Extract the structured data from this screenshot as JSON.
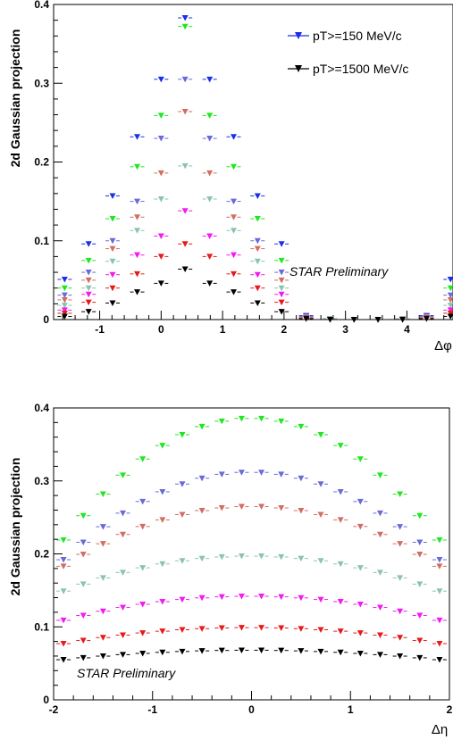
{
  "chart_data": [
    {
      "type": "scatter",
      "panel": "top",
      "xlabel": "Δφ",
      "ylabel": "2d Gaussian projection",
      "annotation": "STAR Preliminary",
      "xlim": [
        -1.75,
        4.75
      ],
      "ylim": [
        0,
        0.4
      ],
      "xticks": [
        "-1",
        "0",
        "1",
        "2",
        "3",
        "4"
      ],
      "yticks": [
        "0",
        "0.1",
        "0.2",
        "0.3",
        "0.4"
      ],
      "legend": [
        {
          "label": "pT>=150 MeV/c",
          "color": "#1a2fe6"
        },
        {
          "label": "pT>=1500 MeV/c",
          "color": "#000000"
        }
      ],
      "x": [
        -1.57,
        -1.18,
        -0.79,
        -0.39,
        0.0,
        0.39,
        0.79,
        1.18,
        1.57,
        1.96,
        2.36,
        2.75,
        3.14,
        3.53,
        3.93,
        4.32,
        4.71
      ],
      "series": [
        {
          "color": "#1a2fe6",
          "values": [
            0.051,
            0.096,
            0.157,
            0.232,
            0.305,
            0.383,
            0.305,
            0.232,
            0.157,
            0.096,
            0.005,
            0.001,
            0.0,
            0.0,
            0.001,
            0.005,
            0.051
          ]
        },
        {
          "color": "#22e622",
          "values": [
            0.04,
            0.075,
            0.128,
            0.194,
            0.259,
            0.372,
            0.259,
            0.194,
            0.128,
            0.075,
            0.004,
            0.001,
            0.0,
            0.0,
            0.001,
            0.004,
            0.04
          ]
        },
        {
          "color": "#6a6ad8",
          "values": [
            0.031,
            0.06,
            0.1,
            0.15,
            0.23,
            0.305,
            0.23,
            0.15,
            0.1,
            0.06,
            0.004,
            0.001,
            0.0,
            0.0,
            0.001,
            0.004,
            0.031
          ]
        },
        {
          "color": "#cf6f63",
          "values": [
            0.025,
            0.05,
            0.09,
            0.13,
            0.186,
            0.264,
            0.186,
            0.13,
            0.09,
            0.05,
            0.003,
            0.001,
            0.0,
            0.0,
            0.001,
            0.003,
            0.025
          ]
        },
        {
          "color": "#8cc3b0",
          "values": [
            0.018,
            0.04,
            0.074,
            0.113,
            0.153,
            0.195,
            0.153,
            0.113,
            0.074,
            0.04,
            0.003,
            0.001,
            0.0,
            0.0,
            0.001,
            0.003,
            0.018
          ]
        },
        {
          "color": "#f01cf0",
          "values": [
            0.012,
            0.032,
            0.057,
            0.082,
            0.106,
            0.138,
            0.106,
            0.082,
            0.057,
            0.032,
            0.002,
            0.0,
            0.0,
            0.0,
            0.0,
            0.002,
            0.012
          ]
        },
        {
          "color": "#e61a1a",
          "values": [
            0.008,
            0.022,
            0.04,
            0.058,
            0.08,
            0.096,
            0.08,
            0.058,
            0.04,
            0.022,
            0.002,
            0.0,
            0.0,
            0.0,
            0.0,
            0.002,
            0.008
          ]
        },
        {
          "color": "#000000",
          "values": [
            0.004,
            0.01,
            0.021,
            0.035,
            0.046,
            0.064,
            0.046,
            0.035,
            0.021,
            0.01,
            0.001,
            0.0,
            0.0,
            0.0,
            0.0,
            0.001,
            0.004
          ]
        }
      ]
    },
    {
      "type": "scatter",
      "panel": "bottom",
      "xlabel": "Δη",
      "ylabel": "2d Gaussian projection",
      "annotation": "STAR Preliminary",
      "xlim": [
        -2,
        2
      ],
      "ylim": [
        0,
        0.4
      ],
      "xticks": [
        "-2",
        "-1",
        "0",
        "1",
        "2"
      ],
      "yticks": [
        "0",
        "0.1",
        "0.2",
        "0.3",
        "0.4"
      ],
      "x": [
        -1.9,
        -1.7,
        -1.5,
        -1.3,
        -1.1,
        -0.9,
        -0.7,
        -0.5,
        -0.3,
        -0.1,
        0.1,
        0.3,
        0.5,
        0.7,
        0.9,
        1.1,
        1.3,
        1.5,
        1.7,
        1.9
      ],
      "series": [
        {
          "color": "#22e622",
          "peak": 0.386,
          "edge": 0.219
        },
        {
          "color": "#6a6ad8",
          "peak": 0.312,
          "edge": 0.192
        },
        {
          "color": "#cf6f63",
          "peak": 0.265,
          "edge": 0.183
        },
        {
          "color": "#8cc3b0",
          "peak": 0.197,
          "edge": 0.149
        },
        {
          "color": "#f01cf0",
          "peak": 0.142,
          "edge": 0.109
        },
        {
          "color": "#e61a1a",
          "peak": 0.099,
          "edge": 0.077
        },
        {
          "color": "#000000",
          "peak": 0.068,
          "edge": 0.055
        }
      ]
    }
  ]
}
